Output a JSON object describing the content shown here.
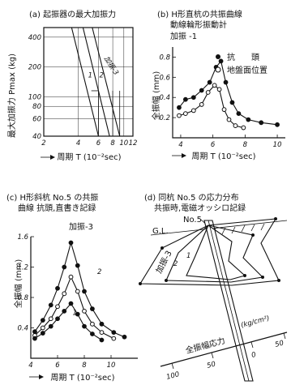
{
  "chart_data": [
    {
      "id": "a",
      "type": "line",
      "title": "(a) 起振器の最大加振力",
      "xlabel": "周期 T (10⁻²sec)",
      "ylabel": "最大加振力 Pmax (kg)",
      "xscale": "log",
      "yscale": "log",
      "xlim": [
        2,
        12
      ],
      "ylim": [
        40,
        500
      ],
      "x_ticks": [
        2,
        4,
        6,
        8,
        10,
        12
      ],
      "y_ticks": [
        40,
        60,
        80,
        100,
        200,
        400
      ],
      "series": [
        {
          "name": "1",
          "x": [
            3.5,
            6.0
          ],
          "y": [
            500,
            40
          ]
        },
        {
          "name": "2",
          "x": [
            4.4,
            7.5
          ],
          "y": [
            500,
            40
          ]
        },
        {
          "name": "加振-3",
          "x": [
            5.3,
            9.2
          ],
          "y": [
            500,
            40
          ]
        }
      ],
      "guides": [
        {
          "x": [
            6,
            6
          ],
          "y": [
            40,
            115
          ]
        },
        {
          "x": [
            8,
            8
          ],
          "y": [
            40,
            115
          ]
        },
        {
          "x": [
            9.2,
            9.2
          ],
          "y": [
            40,
            115
          ]
        },
        {
          "x": [
            5.2,
            6.0
          ],
          "y": [
            115,
            115
          ]
        }
      ]
    },
    {
      "id": "b",
      "type": "line",
      "title_lines": [
        "(b) H形直杭の共振曲線",
        "動線輪形振動計",
        "加振 -1"
      ],
      "xlabel": "周期 T (10⁻²sec)",
      "ylabel": "全振幅 (mm)",
      "xlim": [
        3.5,
        10.5
      ],
      "ylim": [
        0,
        0.9
      ],
      "x_ticks": [
        4,
        6,
        8,
        10
      ],
      "y_ticks": [
        0.2,
        0.4,
        0.6,
        0.8
      ],
      "legend_position": "top-right",
      "series": [
        {
          "name": "抗　　頭",
          "marker": "filled",
          "x": [
            3.9,
            4.3,
            4.8,
            5.3,
            5.8,
            6.2,
            6.5,
            6.8,
            7.2,
            7.6,
            8.2,
            9.0,
            10.0
          ],
          "y": [
            0.3,
            0.38,
            0.4,
            0.47,
            0.55,
            0.7,
            0.76,
            0.55,
            0.35,
            0.24,
            0.18,
            0.15,
            0.13
          ]
        },
        {
          "name": "地盤面位置",
          "marker": "open",
          "x": [
            3.9,
            4.3,
            4.8,
            5.3,
            5.7,
            6.1,
            6.4,
            6.7,
            7.0,
            7.4,
            7.9
          ],
          "y": [
            0.22,
            0.24,
            0.27,
            0.33,
            0.45,
            0.52,
            0.48,
            0.28,
            0.18,
            0.12,
            0.1
          ]
        }
      ]
    },
    {
      "id": "c",
      "type": "line",
      "title_lines": [
        "(c) H形斜杭 No.5 の共振",
        "曲線 抗頭,直書き記録"
      ],
      "xlabel": "周期 T (10⁻²sec)",
      "ylabel": "全振幅 (mm)",
      "xlim": [
        4,
        12
      ],
      "ylim": [
        0,
        1.6
      ],
      "x_ticks": [
        4,
        6,
        8,
        10
      ],
      "y_ticks": [
        0.4,
        0.8,
        1.2,
        1.6
      ],
      "y_tick_labels": [
        "0.4",
        "0.8",
        "1.2",
        "1.6"
      ],
      "series": [
        {
          "name": "加振-3",
          "marker": "filled",
          "x": [
            4.3,
            4.9,
            5.5,
            6.0,
            6.5,
            7.0,
            7.5,
            8.0,
            8.6,
            9.3,
            10.2,
            11.0
          ],
          "y": [
            0.35,
            0.5,
            0.7,
            0.92,
            1.2,
            1.52,
            1.22,
            0.88,
            0.65,
            0.45,
            0.34,
            0.28
          ]
        },
        {
          "name": "2",
          "marker": "open",
          "x": [
            4.3,
            4.9,
            5.5,
            6.0,
            6.5,
            7.0,
            7.5,
            8.0,
            8.6,
            9.3,
            10.2
          ],
          "y": [
            0.3,
            0.4,
            0.52,
            0.68,
            0.85,
            1.07,
            0.88,
            0.62,
            0.45,
            0.34,
            0.26
          ]
        },
        {
          "name": "1",
          "marker": "filled",
          "x": [
            4.3,
            4.9,
            5.5,
            6.0,
            6.5,
            7.0,
            7.5,
            8.0,
            8.6,
            9.3
          ],
          "y": [
            0.26,
            0.33,
            0.42,
            0.52,
            0.62,
            0.72,
            0.58,
            0.42,
            0.32,
            0.24
          ]
        }
      ]
    }
  ],
  "panel_d": {
    "title_lines": [
      "(d) 同杭 No.5 の応力分布",
      "共振時,電磁オッシロ記録"
    ],
    "ground_label": "G.L.",
    "pile_label": "No.5",
    "profile_labels": [
      "加振-3",
      "2",
      "1"
    ],
    "stress_axis_label": "全振幅応力",
    "stress_unit": "(kg/cm²)",
    "stress_ticks": [
      "100",
      "50",
      "0",
      "50"
    ]
  }
}
